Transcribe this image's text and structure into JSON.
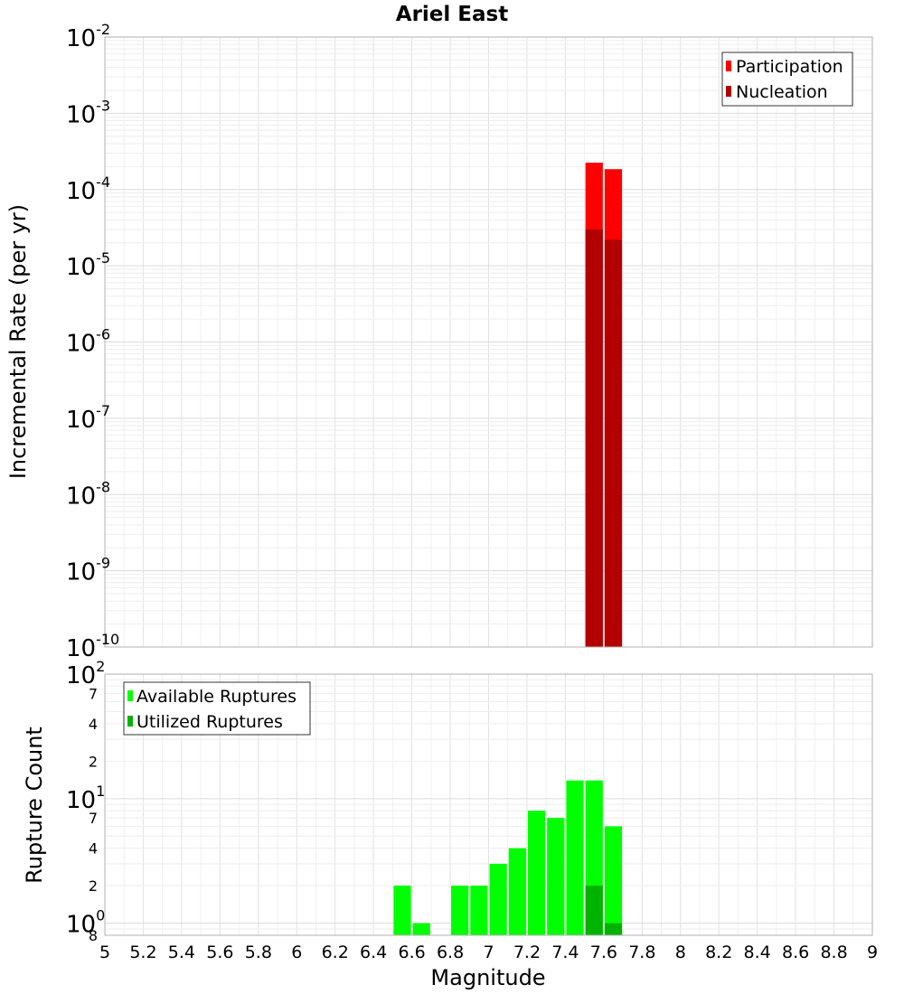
{
  "chart_data": [
    {
      "type": "bar",
      "title": "Ariel East",
      "ylabel": "Incremental Rate (per yr)",
      "xlim": [
        5,
        9
      ],
      "ylim_exponents": [
        -10,
        -2
      ],
      "yscale": "log",
      "y_tick_base": "10",
      "y_tick_exponents": [
        "-10",
        "-9",
        "-8",
        "-7",
        "-6",
        "-5",
        "-4",
        "-3",
        "-2"
      ],
      "grid": true,
      "legend_position": "top-right",
      "series": [
        {
          "name": "Participation",
          "color": "#ff0000",
          "x": [
            7.55,
            7.65
          ],
          "values": [
            0.000225,
            0.000185
          ]
        },
        {
          "name": "Nucleation",
          "color": "#b30000",
          "x": [
            7.55,
            7.65
          ],
          "values": [
            3e-05,
            2.2e-05
          ]
        }
      ]
    },
    {
      "type": "bar",
      "ylabel": "Rupture Count",
      "xlabel": "Magnitude",
      "xlim": [
        5,
        9
      ],
      "x_ticks": [
        "5",
        "5.2",
        "5.4",
        "5.6",
        "5.8",
        "6",
        "6.2",
        "6.4",
        "6.6",
        "6.8",
        "7",
        "7.2",
        "7.4",
        "7.6",
        "7.8",
        "8",
        "8.2",
        "8.4",
        "8.6",
        "8.8",
        "9"
      ],
      "yscale": "log",
      "ylim": [
        0.8,
        100
      ],
      "y_major_ticks": [
        {
          "base": "10",
          "exp": "0",
          "value": 1
        },
        {
          "base": "10",
          "exp": "1",
          "value": 10
        },
        {
          "base": "10",
          "exp": "2",
          "value": 100
        }
      ],
      "y_minor_ticks": [
        {
          "label": "8",
          "value": 0.8
        },
        {
          "label": "2",
          "value": 2
        },
        {
          "label": "4",
          "value": 4
        },
        {
          "label": "7",
          "value": 7
        },
        {
          "label": "2",
          "value": 20
        },
        {
          "label": "4",
          "value": 40
        },
        {
          "label": "7",
          "value": 70
        }
      ],
      "grid": true,
      "legend_position": "top-left",
      "series": [
        {
          "name": "Available Ruptures",
          "color": "#00ff00",
          "x": [
            6.55,
            6.65,
            6.85,
            6.95,
            7.05,
            7.15,
            7.25,
            7.35,
            7.45,
            7.55,
            7.65
          ],
          "values": [
            2,
            1,
            2,
            2,
            3,
            4,
            8,
            7,
            14,
            14,
            6
          ]
        },
        {
          "name": "Utilized Ruptures",
          "color": "#00b300",
          "x": [
            7.55,
            7.65
          ],
          "values": [
            2,
            1
          ]
        }
      ]
    }
  ]
}
